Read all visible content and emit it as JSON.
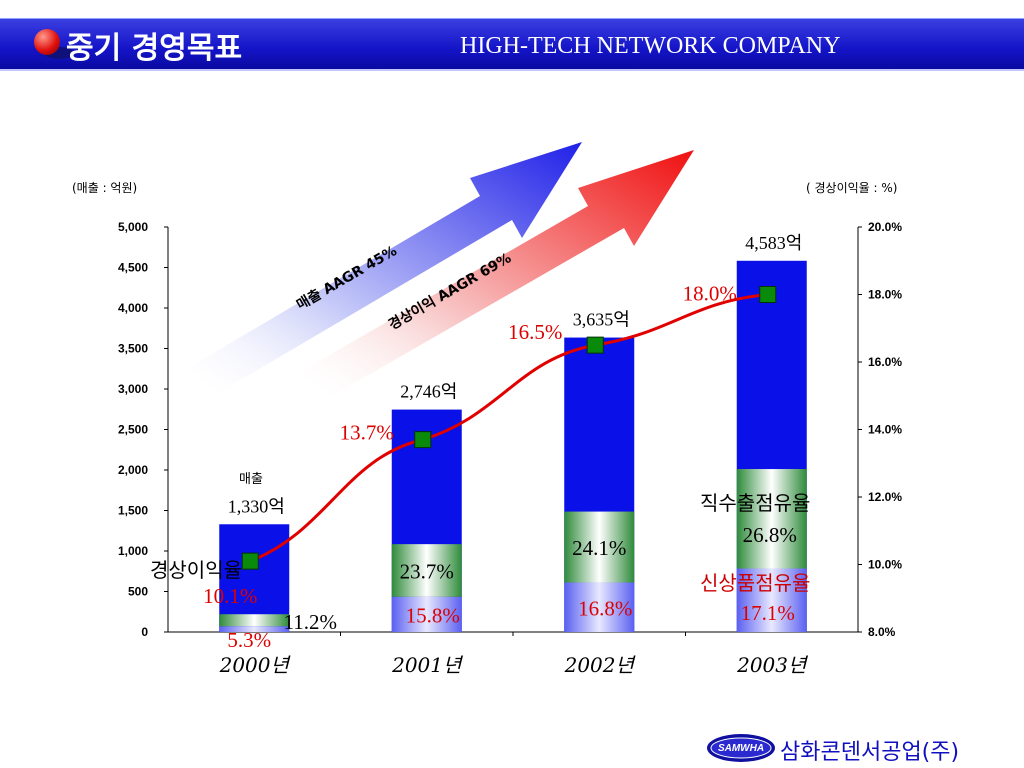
{
  "header": {
    "title": "중기 경영목표",
    "company": "HIGH-TECH NETWORK COMPANY"
  },
  "footer": {
    "logo_text": "SAMWHA",
    "company_name": "삼화콘덴서공업(주)"
  },
  "colors": {
    "header_blue": "#1414c8",
    "bar_blue": "#0a10e8",
    "line_red": "#e00000",
    "marker_green": "#0a8a0a",
    "band_green": "#2e8a3a"
  },
  "chart_data": {
    "type": "bar",
    "categories": [
      "2000년",
      "2001년",
      "2002년",
      "2003년"
    ],
    "series": [
      {
        "name": "매출",
        "values": [
          1330,
          2746,
          3635,
          4583
        ]
      },
      {
        "name": "경상이익율",
        "values": [
          10.1,
          13.7,
          16.5,
          18.0
        ]
      },
      {
        "name": "직수출점유율",
        "values": [
          11.2,
          23.7,
          24.1,
          26.8
        ]
      },
      {
        "name": "신상품점유율",
        "values": [
          5.3,
          15.8,
          16.8,
          17.1
        ]
      }
    ],
    "sales_labels": [
      "1,330억",
      "2,746억",
      "3,635억",
      "4,583억"
    ],
    "profit_labels": [
      "10.1%",
      "13.7%",
      "16.5%",
      "18.0%"
    ],
    "export_labels": [
      "11.2%",
      "23.7%",
      "24.1%",
      "26.8%"
    ],
    "newprod_labels": [
      "5.3%",
      "15.8%",
      "16.8%",
      "17.1%"
    ],
    "left_unit": "(매출 : 억원)",
    "right_unit": "( 경상이익율 : %)",
    "ylim_left": [
      0,
      5000
    ],
    "ylim_right": [
      8.0,
      20.0
    ],
    "yticks_left": [
      "0",
      "500",
      "1,000",
      "1,500",
      "2,000",
      "2,500",
      "3,000",
      "3,500",
      "4,000",
      "4,500",
      "5,000"
    ],
    "yticks_right": [
      "8.0%",
      "10.0%",
      "12.0%",
      "14.0%",
      "16.0%",
      "18.0%",
      "20.0%"
    ],
    "annotations": {
      "sales": "매출",
      "profit_rate": "경상이익율",
      "export_share": "직수출점유율",
      "new_product_share": "신상품점유율",
      "sales_aagr": "매출 AAGR 45%",
      "profit_aagr": "경상이익 AAGR 69%"
    },
    "grid": false
  }
}
